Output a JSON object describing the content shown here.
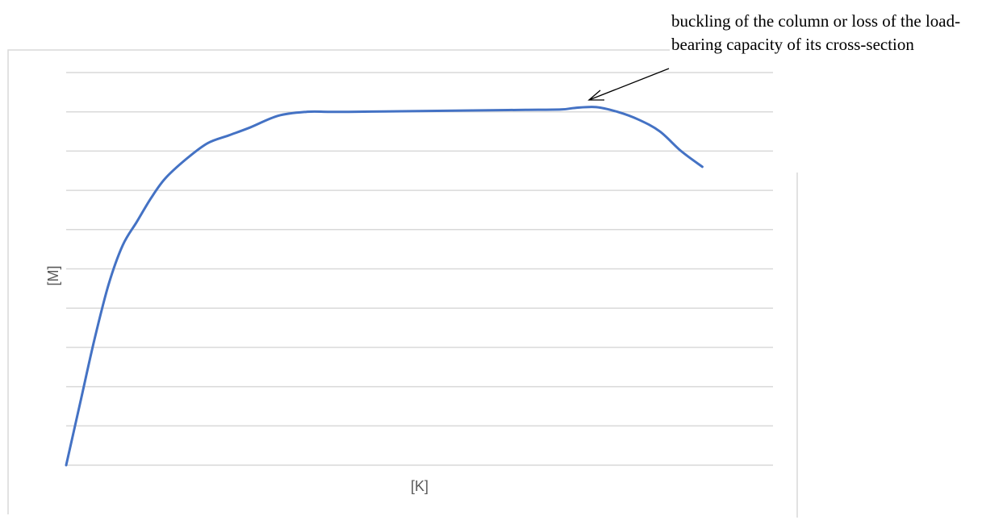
{
  "annotation": {
    "text": "buckling of the column or loss of the load-bearing capacity of its cross-section"
  },
  "chart_data": {
    "type": "line",
    "xlabel": "[K]",
    "ylabel": "[M]",
    "xlim": [
      0,
      100
    ],
    "ylim": [
      0,
      10
    ],
    "grid": true,
    "y_gridlines": 10,
    "legend": "none",
    "series_color": "#4472c4",
    "series": [
      {
        "x": [
          0,
          2,
          4,
          6,
          8,
          10,
          12,
          14,
          17,
          20,
          23,
          26,
          30,
          34,
          37,
          40,
          45,
          50,
          55,
          60,
          65,
          70,
          72,
          75,
          78,
          81,
          84,
          87,
          90
        ],
        "y": [
          0,
          1.6,
          3.2,
          4.6,
          5.6,
          6.2,
          6.8,
          7.3,
          7.8,
          8.2,
          8.4,
          8.6,
          8.9,
          9.0,
          9.0,
          9.0,
          9.01,
          9.02,
          9.03,
          9.04,
          9.05,
          9.06,
          9.1,
          9.12,
          9.0,
          8.8,
          8.5,
          8.0,
          7.6
        ]
      }
    ]
  }
}
